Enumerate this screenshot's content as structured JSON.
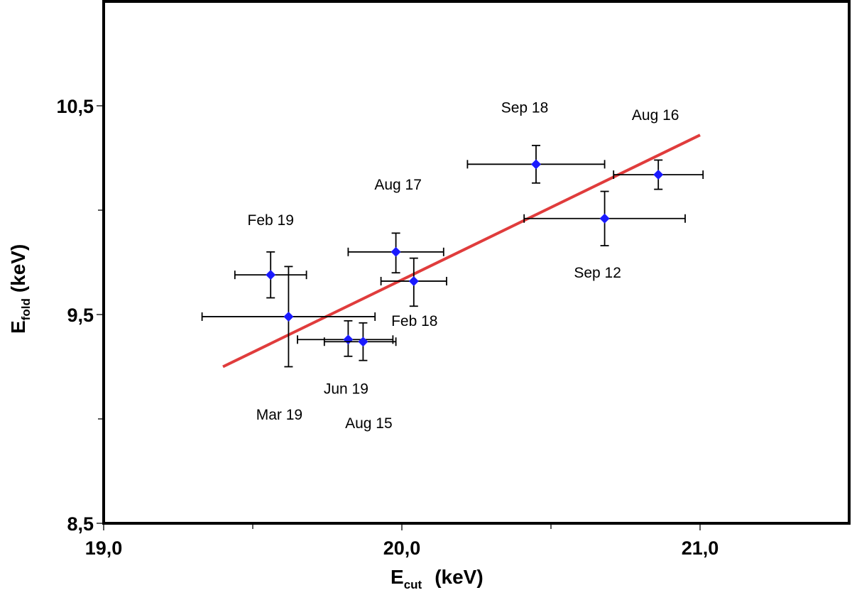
{
  "chart_data": {
    "type": "scatter",
    "title": "",
    "xlabel": {
      "main": "E",
      "sub": "cut",
      "unit": "(keV)"
    },
    "ylabel": {
      "main": "E",
      "sub": "fold",
      "unit": "(keV)"
    },
    "xlim": [
      19.0,
      21.5
    ],
    "ylim": [
      8.5,
      11.0
    ],
    "x_ticks": [
      19.0,
      20.0,
      21.0
    ],
    "x_tick_labels": [
      "19,0",
      "20,0",
      "21,0"
    ],
    "x_minor_ticks": [
      19.5,
      20.5
    ],
    "y_ticks": [
      8.5,
      9.5,
      10.5
    ],
    "y_tick_labels": [
      "8,5",
      "9,5",
      "10,5"
    ],
    "y_minor_ticks": [
      9.0,
      10.0
    ],
    "marker_color": "#1a1aff",
    "fit_color": "#e03c3c",
    "points": [
      {
        "label": "Feb 19",
        "x": 19.56,
        "y": 9.69,
        "x_lo": 19.44,
        "x_hi": 19.68,
        "y_lo": 9.58,
        "y_hi": 9.8
      },
      {
        "label": "Mar 19",
        "x": 19.62,
        "y": 9.49,
        "x_lo": 19.33,
        "x_hi": 19.91,
        "y_lo": 9.25,
        "y_hi": 9.73
      },
      {
        "label": "Jun 19",
        "x": 19.82,
        "y": 9.38,
        "x_lo": 19.65,
        "x_hi": 19.97,
        "y_lo": 9.3,
        "y_hi": 9.47
      },
      {
        "label": "Aug 15",
        "x": 19.87,
        "y": 9.37,
        "x_lo": 19.74,
        "x_hi": 19.98,
        "y_lo": 9.28,
        "y_hi": 9.46
      },
      {
        "label": "Aug 17",
        "x": 19.98,
        "y": 9.8,
        "x_lo": 19.82,
        "x_hi": 20.14,
        "y_lo": 9.7,
        "y_hi": 9.89
      },
      {
        "label": "Feb 18",
        "x": 20.04,
        "y": 9.66,
        "x_lo": 19.93,
        "x_hi": 20.15,
        "y_lo": 9.54,
        "y_hi": 9.77
      },
      {
        "label": "Sep 18",
        "x": 20.45,
        "y": 10.22,
        "x_lo": 20.22,
        "x_hi": 20.68,
        "y_lo": 10.13,
        "y_hi": 10.31
      },
      {
        "label": "Sep 12",
        "x": 20.68,
        "y": 9.96,
        "x_lo": 20.41,
        "x_hi": 20.95,
        "y_lo": 9.83,
        "y_hi": 10.09
      },
      {
        "label": "Aug 16",
        "x": 20.86,
        "y": 10.17,
        "x_lo": 20.71,
        "x_hi": 21.01,
        "y_lo": 10.1,
        "y_hi": 10.24
      }
    ],
    "fit_line": {
      "x": [
        19.4,
        21.0
      ],
      "y": [
        9.25,
        10.36
      ]
    }
  }
}
